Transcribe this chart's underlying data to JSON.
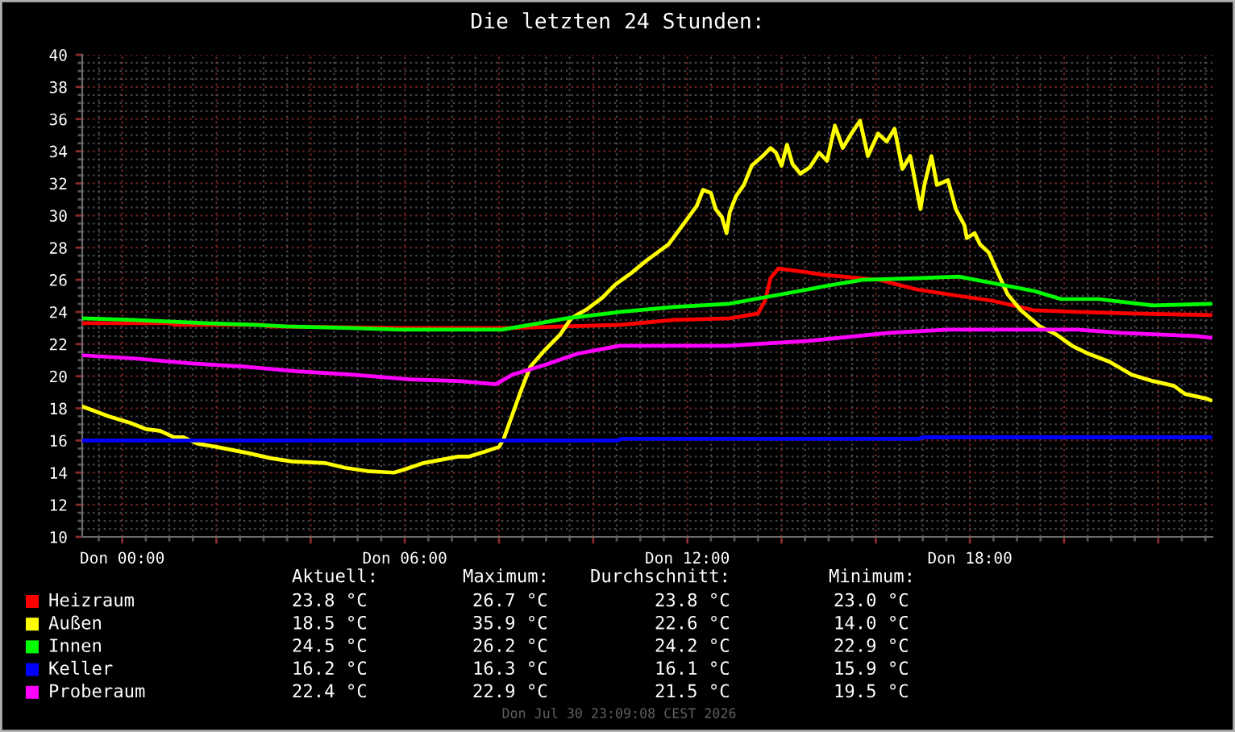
{
  "chart_data": {
    "type": "line",
    "title": "Die letzten 24 Stunden:",
    "xlim": [
      "2026-07-29T23:09",
      "2026-07-30T23:09"
    ],
    "xticks": [
      {
        "value": "2026-07-30T00:00",
        "label": "Don 00:00"
      },
      {
        "value": "2026-07-30T02:00",
        "label": null
      },
      {
        "value": "2026-07-30T04:00",
        "label": null
      },
      {
        "value": "2026-07-30T06:00",
        "label": "Don 06:00"
      },
      {
        "value": "2026-07-30T08:00",
        "label": null
      },
      {
        "value": "2026-07-30T10:00",
        "label": null
      },
      {
        "value": "2026-07-30T12:00",
        "label": "Don 12:00"
      },
      {
        "value": "2026-07-30T14:00",
        "label": null
      },
      {
        "value": "2026-07-30T16:00",
        "label": null
      },
      {
        "value": "2026-07-30T18:00",
        "label": "Don 18:00"
      },
      {
        "value": "2026-07-30T20:00",
        "label": null
      },
      {
        "value": "2026-07-30T22:00",
        "label": null
      }
    ],
    "ylim": [
      10,
      40
    ],
    "yticks": [
      10,
      12,
      14,
      16,
      18,
      20,
      22,
      24,
      26,
      28,
      30,
      32,
      34,
      36,
      38,
      40
    ],
    "grid": true,
    "legend": "bottom",
    "series": [
      {
        "name": "Heizraum",
        "color": "#ff0000",
        "x": [
          "2026-07-29T23:10",
          "2026-07-30T01:00",
          "2026-07-30T01:06",
          "2026-07-30T03:00",
          "2026-07-30T03:06",
          "2026-07-30T06:00",
          "2026-07-30T08:18",
          "2026-07-30T09:24",
          "2026-07-30T10:36",
          "2026-07-30T11:42",
          "2026-07-30T12:54",
          "2026-07-30T13:30",
          "2026-07-30T13:39",
          "2026-07-30T13:46",
          "2026-07-30T13:56",
          "2026-07-30T14:28",
          "2026-07-30T14:55",
          "2026-07-30T16:04",
          "2026-07-30T16:52",
          "2026-07-30T17:32",
          "2026-07-30T18:28",
          "2026-07-30T19:22",
          "2026-07-30T20:17",
          "2026-07-30T21:26",
          "2026-07-30T23:07"
        ],
        "values": [
          23.3,
          23.3,
          23.2,
          23.2,
          23.1,
          23.0,
          23.0,
          23.1,
          23.2,
          23.5,
          23.6,
          23.9,
          24.7,
          26.1,
          26.7,
          26.5,
          26.3,
          26.0,
          25.4,
          25.1,
          24.7,
          24.1,
          24.0,
          23.9,
          23.8
        ]
      },
      {
        "name": "Außen",
        "color": "#ffff00",
        "x": [
          "2026-07-29T23:10",
          "2026-07-29T23:32",
          "2026-07-29T23:43",
          "2026-07-30T00:10",
          "2026-07-30T00:31",
          "2026-07-30T00:48",
          "2026-07-30T01:06",
          "2026-07-30T01:18",
          "2026-07-30T01:36",
          "2026-07-30T02:00",
          "2026-07-30T02:42",
          "2026-07-30T03:09",
          "2026-07-30T03:36",
          "2026-07-30T04:18",
          "2026-07-30T04:44",
          "2026-07-30T05:12",
          "2026-07-30T05:46",
          "2026-07-30T06:00",
          "2026-07-30T06:24",
          "2026-07-30T07:08",
          "2026-07-30T07:22",
          "2026-07-30T07:42",
          "2026-07-30T08:00",
          "2026-07-30T08:06",
          "2026-07-30T08:17",
          "2026-07-30T08:28",
          "2026-07-30T08:40",
          "2026-07-30T08:58",
          "2026-07-30T09:18",
          "2026-07-30T09:32",
          "2026-07-30T09:53",
          "2026-07-30T10:12",
          "2026-07-30T10:28",
          "2026-07-30T10:48",
          "2026-07-30T11:08",
          "2026-07-30T11:36",
          "2026-07-30T11:57",
          "2026-07-30T12:12",
          "2026-07-30T12:20",
          "2026-07-30T12:30",
          "2026-07-30T12:36",
          "2026-07-30T12:44",
          "2026-07-30T12:50",
          "2026-07-30T12:54",
          "2026-07-30T13:02",
          "2026-07-30T13:12",
          "2026-07-30T13:22",
          "2026-07-30T13:36",
          "2026-07-30T13:46",
          "2026-07-30T13:53",
          "2026-07-30T14:00",
          "2026-07-30T14:07",
          "2026-07-30T14:14",
          "2026-07-30T14:24",
          "2026-07-30T14:36",
          "2026-07-30T14:48",
          "2026-07-30T14:58",
          "2026-07-30T15:08",
          "2026-07-30T15:18",
          "2026-07-30T15:29",
          "2026-07-30T15:40",
          "2026-07-30T15:50",
          "2026-07-30T16:03",
          "2026-07-30T16:14",
          "2026-07-30T16:24",
          "2026-07-30T16:34",
          "2026-07-30T16:44",
          "2026-07-30T16:57",
          "2026-07-30T17:02",
          "2026-07-30T17:11",
          "2026-07-30T17:18",
          "2026-07-30T17:32",
          "2026-07-30T17:42",
          "2026-07-30T17:53",
          "2026-07-30T17:56",
          "2026-07-30T18:06",
          "2026-07-30T18:13",
          "2026-07-30T18:24",
          "2026-07-30T18:34",
          "2026-07-30T18:48",
          "2026-07-30T19:05",
          "2026-07-30T19:29",
          "2026-07-30T19:50",
          "2026-07-30T20:10",
          "2026-07-30T20:31",
          "2026-07-30T20:58",
          "2026-07-30T21:26",
          "2026-07-30T21:53",
          "2026-07-30T22:20",
          "2026-07-30T22:34",
          "2026-07-30T23:02",
          "2026-07-30T23:07"
        ],
        "values": [
          18.1,
          17.7,
          17.5,
          17.1,
          16.7,
          16.6,
          16.2,
          16.2,
          15.8,
          15.6,
          15.2,
          14.9,
          14.7,
          14.6,
          14.3,
          14.1,
          14.0,
          14.2,
          14.6,
          15.0,
          15.0,
          15.3,
          15.6,
          16.1,
          17.6,
          19.1,
          20.6,
          21.6,
          22.6,
          23.6,
          24.2,
          24.9,
          25.7,
          26.4,
          27.2,
          28.2,
          29.6,
          30.6,
          31.6,
          31.4,
          30.4,
          29.9,
          28.9,
          30.2,
          31.2,
          31.9,
          33.1,
          33.7,
          34.2,
          33.9,
          33.1,
          34.4,
          33.2,
          32.6,
          33.0,
          33.9,
          33.4,
          35.6,
          34.2,
          35.1,
          35.9,
          33.7,
          35.1,
          34.6,
          35.4,
          32.9,
          33.7,
          30.4,
          31.9,
          33.7,
          31.9,
          32.2,
          30.4,
          29.4,
          28.6,
          28.9,
          28.2,
          27.7,
          26.6,
          25.1,
          24.1,
          23.1,
          22.6,
          21.9,
          21.4,
          20.9,
          20.1,
          19.7,
          19.4,
          18.9,
          18.6,
          18.5
        ]
      },
      {
        "name": "Innen",
        "color": "#00ff00",
        "x": [
          "2026-07-29T23:10",
          "2026-07-30T00:14",
          "2026-07-30T01:46",
          "2026-07-30T02:48",
          "2026-07-30T03:29",
          "2026-07-30T04:52",
          "2026-07-30T05:53",
          "2026-07-30T08:04",
          "2026-07-30T08:52",
          "2026-07-30T09:26",
          "2026-07-30T10:34",
          "2026-07-30T11:42",
          "2026-07-30T12:52",
          "2026-07-30T14:00",
          "2026-07-30T14:34",
          "2026-07-30T14:55",
          "2026-07-30T15:43",
          "2026-07-30T16:52",
          "2026-07-30T17:46",
          "2026-07-30T18:28",
          "2026-07-30T19:22",
          "2026-07-30T19:56",
          "2026-07-30T20:44",
          "2026-07-30T21:53",
          "2026-07-30T23:07"
        ],
        "values": [
          23.6,
          23.5,
          23.3,
          23.2,
          23.1,
          23.0,
          22.9,
          22.9,
          23.3,
          23.6,
          24.0,
          24.3,
          24.5,
          25.1,
          25.4,
          25.6,
          26.0,
          26.1,
          26.2,
          25.8,
          25.3,
          24.8,
          24.8,
          24.4,
          24.5
        ]
      },
      {
        "name": "Keller",
        "color": "#0000ff",
        "x": [
          "2026-07-29T23:10",
          "2026-07-30T10:30",
          "2026-07-30T10:36",
          "2026-07-30T16:54",
          "2026-07-30T17:00",
          "2026-07-30T23:07"
        ],
        "values": [
          16.0,
          16.0,
          16.1,
          16.1,
          16.2,
          16.2
        ]
      },
      {
        "name": "Proberaum",
        "color": "#ff00ff",
        "x": [
          "2026-07-29T23:10",
          "2026-07-30T00:17",
          "2026-07-30T01:26",
          "2026-07-30T02:34",
          "2026-07-30T03:43",
          "2026-07-30T04:52",
          "2026-07-30T06:07",
          "2026-07-30T07:08",
          "2026-07-30T07:56",
          "2026-07-30T08:17",
          "2026-07-30T08:58",
          "2026-07-30T09:40",
          "2026-07-30T10:34",
          "2026-07-30T12:52",
          "2026-07-30T14:00",
          "2026-07-30T14:34",
          "2026-07-30T14:55",
          "2026-07-30T16:17",
          "2026-07-30T17:32",
          "2026-07-30T20:17",
          "2026-07-30T21:12",
          "2026-07-30T22:48",
          "2026-07-30T23:07"
        ],
        "values": [
          21.3,
          21.1,
          20.8,
          20.6,
          20.3,
          20.1,
          19.8,
          19.7,
          19.5,
          20.1,
          20.7,
          21.4,
          21.9,
          21.9,
          22.1,
          22.2,
          22.3,
          22.7,
          22.9,
          22.9,
          22.7,
          22.5,
          22.4
        ]
      }
    ],
    "annotations": [
      "Aktuell:",
      "Maximum:",
      "Durchschnitt:",
      "Minimum:",
      "23.8 °C",
      "26.7 °C",
      "23.8 °C",
      "23.0 °C",
      "18.5 °C",
      "35.9 °C",
      "22.6 °C",
      "14.0 °C",
      "24.5 °C",
      "26.2 °C",
      "24.2 °C",
      "22.9 °C",
      "16.2 °C",
      "16.3 °C",
      "16.1 °C",
      "15.9 °C",
      "22.4 °C",
      "22.9 °C",
      "21.5 °C",
      "19.5 °C",
      "Don Jul 30 23:09:08 CEST 2026"
    ]
  }
}
